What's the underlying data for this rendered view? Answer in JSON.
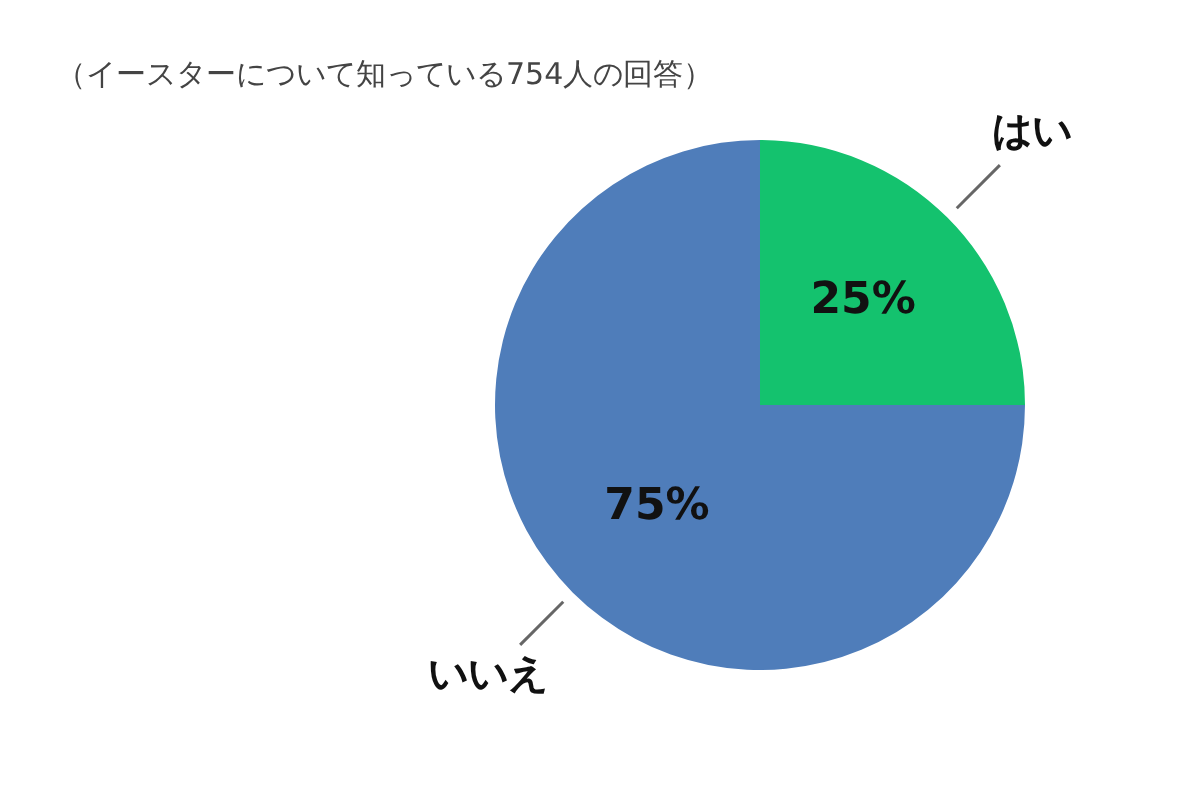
{
  "chart_data": {
    "type": "pie",
    "subtitle": "（イースターについて知っている754人の回答）",
    "categories": [
      "はい",
      "いいえ"
    ],
    "values": [
      25,
      75
    ],
    "colors": [
      "#14c26e",
      "#4f7dba"
    ],
    "value_labels": [
      "25%",
      "75%"
    ],
    "legend": false
  }
}
